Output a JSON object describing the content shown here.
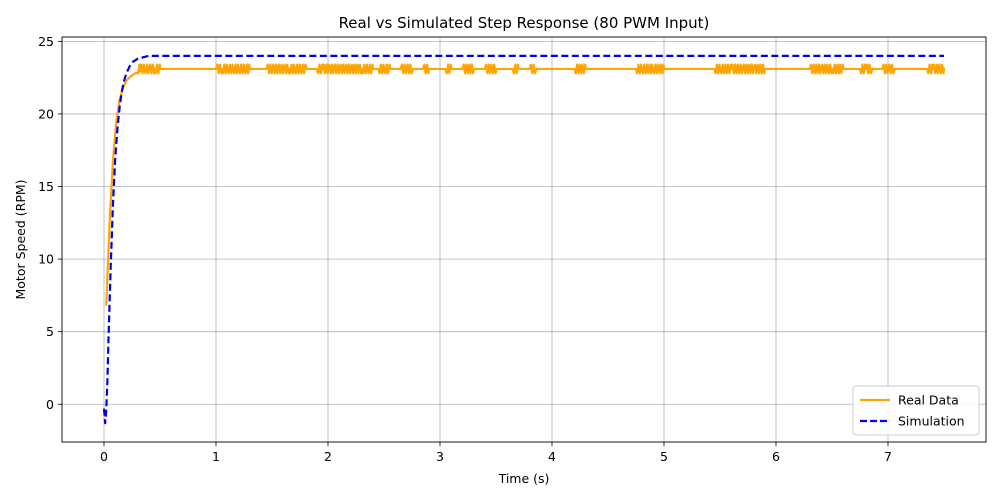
{
  "chart_data": {
    "type": "line",
    "title": "Real vs Simulated Step Response (80 PWM Input)",
    "xlabel": "Time (s)",
    "ylabel": "Motor Speed (RPM)",
    "xlim": [
      -0.375,
      7.875
    ],
    "ylim": [
      -2.6,
      25.3
    ],
    "xticks": [
      0,
      1,
      2,
      3,
      4,
      5,
      6,
      7
    ],
    "yticks": [
      0,
      5,
      10,
      15,
      20,
      25
    ],
    "grid": true,
    "legend_position": "lower-right",
    "series": [
      {
        "name": "Real Data",
        "color": "#FFA500",
        "style": "solid",
        "x": [
          0.02,
          0.05,
          0.08,
          0.11,
          0.14,
          0.17,
          0.2,
          0.24,
          0.28,
          0.32,
          0.36,
          0.4,
          0.45,
          0.5,
          0.55,
          1.0,
          1.05,
          1.1,
          1.15,
          1.2,
          1.25,
          1.3,
          1.4,
          1.45,
          1.5,
          1.55,
          1.6,
          1.65,
          1.7,
          1.75,
          1.9,
          1.95,
          2.0,
          2.05,
          2.1,
          2.15,
          2.2,
          2.3,
          2.35,
          2.4,
          2.5,
          2.6,
          2.7,
          2.8,
          2.9,
          3.0,
          3.1,
          3.2,
          3.3,
          3.4,
          3.6,
          3.7,
          3.8,
          3.9,
          4.2,
          4.3,
          4.7,
          4.8,
          4.9,
          5.0,
          5.4,
          5.5,
          5.6,
          5.7,
          5.8,
          5.9,
          6.3,
          6.4,
          6.5,
          6.6,
          6.7,
          6.8,
          6.9,
          7.0,
          7.3,
          7.4,
          7.5
        ],
        "values": [
          6.8,
          12.5,
          16.8,
          19.5,
          21.0,
          21.8,
          22.3,
          22.6,
          22.8,
          22.9,
          23.0,
          23.1,
          23.1,
          23.1,
          23.1,
          23.1,
          23.1,
          23.1,
          23.1,
          23.1,
          23.1,
          23.1,
          23.1,
          23.1,
          23.1,
          23.1,
          23.1,
          23.1,
          23.1,
          23.1,
          23.1,
          23.1,
          23.1,
          23.1,
          23.1,
          23.1,
          23.1,
          23.1,
          23.1,
          23.1,
          23.1,
          23.1,
          23.1,
          23.1,
          23.1,
          23.1,
          23.1,
          23.1,
          23.1,
          23.1,
          23.1,
          23.1,
          23.1,
          23.1,
          23.1,
          23.1,
          23.1,
          23.1,
          23.1,
          23.1,
          23.1,
          23.1,
          23.1,
          23.1,
          23.1,
          23.1,
          23.1,
          23.1,
          23.1,
          23.1,
          23.1,
          23.1,
          23.1,
          23.1,
          23.1,
          23.1,
          23.2
        ],
        "noise_intervals": [
          [
            0.3,
            0.5
          ],
          [
            1.0,
            1.3
          ],
          [
            1.45,
            1.8
          ],
          [
            1.9,
            2.4
          ],
          [
            2.45,
            2.55
          ],
          [
            2.65,
            2.75
          ],
          [
            2.85,
            2.9
          ],
          [
            3.05,
            3.1
          ],
          [
            3.2,
            3.3
          ],
          [
            3.4,
            3.5
          ],
          [
            3.65,
            3.7
          ],
          [
            3.8,
            3.85
          ],
          [
            4.2,
            4.3
          ],
          [
            4.75,
            5.0
          ],
          [
            5.45,
            5.9
          ],
          [
            6.3,
            6.6
          ],
          [
            6.75,
            6.85
          ],
          [
            6.95,
            7.05
          ],
          [
            7.35,
            7.5
          ]
        ],
        "noise_levels": [
          22.8,
          23.4
        ]
      },
      {
        "name": "Simulation",
        "color": "#0000EE",
        "style": "dashed",
        "x": [
          0.0,
          0.01,
          0.02,
          0.03,
          0.04,
          0.06,
          0.08,
          0.1,
          0.12,
          0.14,
          0.16,
          0.18,
          0.2,
          0.23,
          0.26,
          0.3,
          0.35,
          0.4,
          0.45,
          0.5,
          0.6,
          1.0,
          2.0,
          3.0,
          4.0,
          5.0,
          6.0,
          7.0,
          7.5
        ],
        "values": [
          -0.3,
          -1.3,
          -0.4,
          1.5,
          4.5,
          9.5,
          13.8,
          16.9,
          19.0,
          20.5,
          21.6,
          22.3,
          22.8,
          23.3,
          23.6,
          23.8,
          23.9,
          24.0,
          24.0,
          24.0,
          24.0,
          24.0,
          24.0,
          24.0,
          24.0,
          24.0,
          24.0,
          24.0,
          24.0
        ]
      }
    ]
  }
}
